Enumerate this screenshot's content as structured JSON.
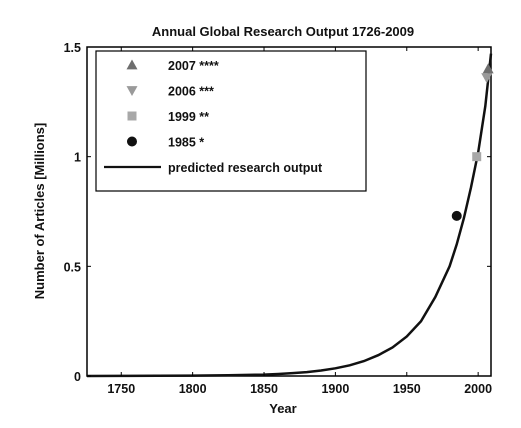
{
  "chart_data": {
    "type": "scatter",
    "title": "Annual Global Research Output 1726-2009",
    "xlabel": "Year",
    "ylabel": "Number of Articles [Millions]",
    "xlim": [
      1726,
      2009
    ],
    "ylim": [
      0,
      1.5
    ],
    "x_ticks": [
      1750,
      1800,
      1850,
      1900,
      1950,
      2000
    ],
    "x_tick_labels": [
      "1750",
      "1800",
      "1850",
      "1900",
      "1950",
      "2000"
    ],
    "y_ticks": [
      0,
      0.5,
      1,
      1.5
    ],
    "y_tick_labels": [
      "0",
      "0.5",
      "1",
      "1.5"
    ],
    "legend_position": "top-left",
    "grid": false,
    "series": [
      {
        "name": "2007 ****",
        "marker": "triangle-up",
        "color": "#6e6e6e",
        "x": [
          2007
        ],
        "y": [
          1.4
        ]
      },
      {
        "name": "2006 ***",
        "marker": "triangle-down",
        "color": "#9a9a9a",
        "x": [
          2006
        ],
        "y": [
          1.36
        ]
      },
      {
        "name": "1999 **",
        "marker": "square",
        "color": "#a8a8a8",
        "x": [
          1999
        ],
        "y": [
          1.0
        ]
      },
      {
        "name": "1985 *",
        "marker": "circle",
        "color": "#111111",
        "x": [
          1985
        ],
        "y": [
          0.73
        ]
      },
      {
        "name": "predicted research output",
        "marker": "line",
        "color": "#111111",
        "x": [
          1726,
          1750,
          1775,
          1800,
          1825,
          1850,
          1860,
          1870,
          1880,
          1890,
          1900,
          1910,
          1920,
          1930,
          1940,
          1950,
          1960,
          1970,
          1980,
          1985,
          1990,
          1995,
          2000,
          2005,
          2009
        ],
        "y": [
          0.0002,
          0.0004,
          0.0008,
          0.0016,
          0.0033,
          0.0066,
          0.0093,
          0.013,
          0.018,
          0.025,
          0.035,
          0.049,
          0.068,
          0.095,
          0.13,
          0.18,
          0.25,
          0.36,
          0.5,
          0.6,
          0.72,
          0.86,
          1.02,
          1.23,
          1.47
        ]
      }
    ]
  }
}
